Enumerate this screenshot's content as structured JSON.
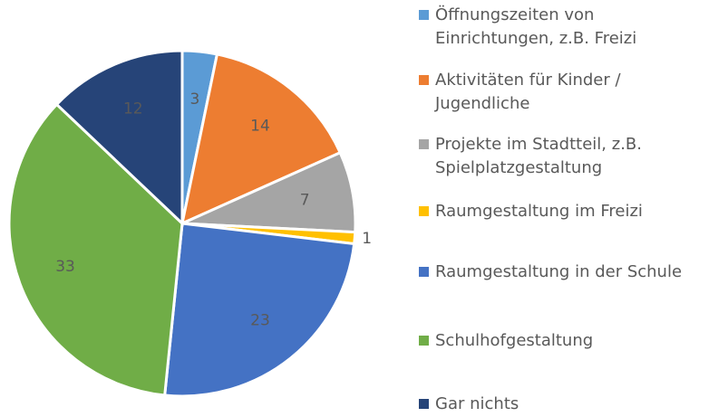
{
  "chart_data": {
    "type": "pie",
    "categories": [
      "Öffnungszeiten von Einrichtungen, z.B. Freizi",
      "Aktivitäten für Kinder / Jugendliche",
      "Projekte im Stadtteil, z.B. Spielplatzgestaltung",
      "Raumgestaltung im Freizi",
      "Raumgestaltung in der Schule",
      "Schulhofgestaltung",
      "Gar nichts"
    ],
    "values": [
      3,
      14,
      7,
      1,
      23,
      33,
      12
    ],
    "colors": [
      "#5b9bd5",
      "#ed7d31",
      "#a5a5a5",
      "#ffc000",
      "#4472c4",
      "#70ad47",
      "#264478"
    ],
    "legend": "right"
  }
}
